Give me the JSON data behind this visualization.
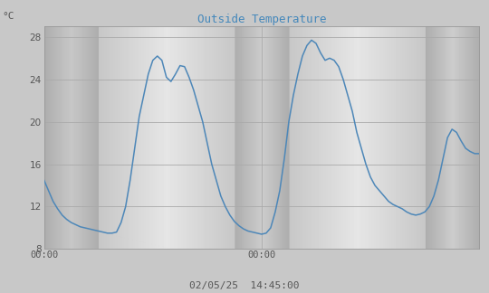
{
  "title": "Outside Temperature",
  "ylabel": "°C",
  "xlabel_bottom": "02/05/25  14:45:00",
  "xtick_labels": [
    "00:00",
    "00:00"
  ],
  "ytick_values": [
    8,
    12,
    16,
    20,
    24,
    28
  ],
  "ylim": [
    8,
    29
  ],
  "xlim": [
    0,
    192
  ],
  "bg_color": "#c8c8c8",
  "line_color": "#4d87b8",
  "title_color": "#4488bb",
  "label_color": "#555555",
  "grid_color": "#aaaaaa",
  "time_data": [
    0,
    2,
    4,
    6,
    8,
    10,
    12,
    14,
    16,
    18,
    20,
    22,
    24,
    26,
    28,
    30,
    32,
    34,
    36,
    38,
    40,
    42,
    44,
    46,
    48,
    50,
    52,
    54,
    56,
    58,
    60,
    62,
    64,
    66,
    68,
    70,
    72,
    74,
    76,
    78,
    80,
    82,
    84,
    86,
    88,
    90,
    92,
    94,
    96,
    98,
    100,
    102,
    104,
    106,
    108,
    110,
    112,
    114,
    116,
    118,
    120,
    122,
    124,
    126,
    128,
    130,
    132,
    134,
    136,
    138,
    140,
    142,
    144,
    146,
    148,
    150,
    152,
    154,
    156,
    158,
    160,
    162,
    164,
    166,
    168,
    170,
    172,
    174,
    176,
    178,
    180,
    182,
    184,
    186,
    188,
    190,
    192
  ],
  "temp_data": [
    14.5,
    13.5,
    12.5,
    11.8,
    11.2,
    10.8,
    10.5,
    10.3,
    10.1,
    10.0,
    9.9,
    9.8,
    9.7,
    9.6,
    9.5,
    9.5,
    9.6,
    10.5,
    12.0,
    14.5,
    17.5,
    20.5,
    22.5,
    24.5,
    25.8,
    26.2,
    25.8,
    24.2,
    23.8,
    24.5,
    25.3,
    25.2,
    24.2,
    23.0,
    21.5,
    20.0,
    18.0,
    16.0,
    14.5,
    13.0,
    12.0,
    11.2,
    10.6,
    10.2,
    9.9,
    9.7,
    9.6,
    9.5,
    9.4,
    9.5,
    10.0,
    11.5,
    13.5,
    16.5,
    20.0,
    22.5,
    24.5,
    26.2,
    27.2,
    27.7,
    27.4,
    26.5,
    25.8,
    26.0,
    25.8,
    25.2,
    24.0,
    22.5,
    21.0,
    19.0,
    17.5,
    16.0,
    14.8,
    14.0,
    13.5,
    13.0,
    12.5,
    12.2,
    12.0,
    11.8,
    11.5,
    11.3,
    11.2,
    11.3,
    11.5,
    12.0,
    13.0,
    14.5,
    16.5,
    18.5,
    19.3,
    19.0,
    18.2,
    17.5,
    17.2,
    17.0,
    17.0
  ]
}
